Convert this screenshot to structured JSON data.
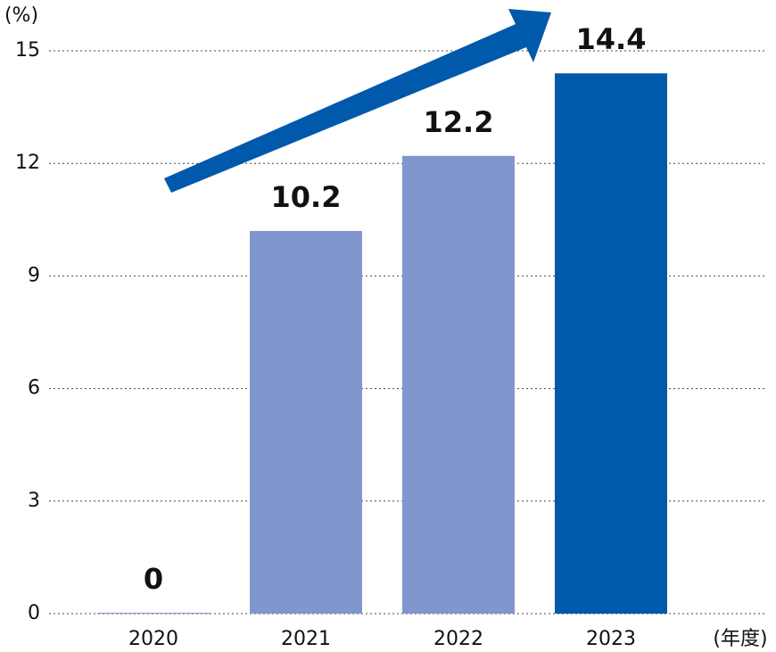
{
  "chart_data": {
    "type": "bar",
    "y_label": "(%)",
    "x_label": "(年度)",
    "categories": [
      "2020",
      "2021",
      "2022",
      "2023"
    ],
    "values": [
      0,
      10.2,
      12.2,
      14.4
    ],
    "colors": [
      "#8096cd",
      "#8096cd",
      "#8096cd",
      "#0059ab"
    ],
    "ylim": [
      0,
      15
    ],
    "yticks": [
      0,
      3,
      6,
      9,
      12,
      15
    ],
    "grid": true
  }
}
